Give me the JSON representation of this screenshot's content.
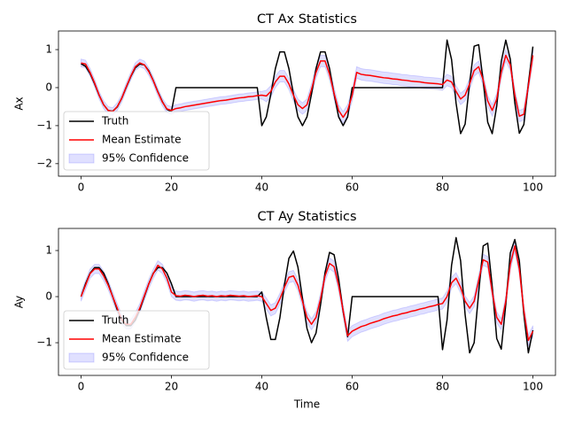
{
  "chart_data": [
    {
      "type": "line",
      "title": "CT Ax Statistics",
      "ylabel": "Ax",
      "x": [
        0,
        1,
        2,
        3,
        4,
        5,
        6,
        7,
        8,
        9,
        10,
        11,
        12,
        13,
        14,
        15,
        16,
        17,
        18,
        19,
        20,
        21,
        22,
        23,
        24,
        25,
        26,
        27,
        28,
        29,
        30,
        31,
        32,
        33,
        34,
        35,
        36,
        37,
        38,
        39,
        40,
        41,
        42,
        43,
        44,
        45,
        46,
        47,
        48,
        49,
        50,
        51,
        52,
        53,
        54,
        55,
        56,
        57,
        58,
        59,
        60,
        61,
        62,
        63,
        64,
        65,
        66,
        67,
        68,
        69,
        70,
        71,
        72,
        73,
        74,
        75,
        76,
        77,
        78,
        79,
        80,
        81,
        82,
        83,
        84,
        85,
        86,
        87,
        88,
        89,
        90,
        91,
        92,
        93,
        94,
        95,
        96,
        97,
        98,
        99,
        100
      ],
      "series": [
        {
          "name": "Truth",
          "color": "#000000",
          "values": [
            0.63,
            0.56,
            0.37,
            0.1,
            -0.2,
            -0.45,
            -0.6,
            -0.62,
            -0.51,
            -0.28,
            0.01,
            0.29,
            0.52,
            0.62,
            0.6,
            0.44,
            0.18,
            -0.11,
            -0.37,
            -0.57,
            -0.63,
            0,
            0,
            0,
            0,
            0,
            0,
            0,
            0,
            0,
            0,
            0,
            0,
            0,
            0,
            0,
            0,
            0,
            0,
            0,
            -1,
            -0.77,
            -0.17,
            0.5,
            0.94,
            0.94,
            0.5,
            -0.17,
            -0.77,
            -1,
            -0.77,
            -0.17,
            0.5,
            0.94,
            0.94,
            0.5,
            -0.17,
            -0.77,
            -1,
            -0.77,
            0,
            0,
            0,
            0,
            0,
            0,
            0,
            0,
            0,
            0,
            0,
            0,
            0,
            0,
            0,
            0,
            0,
            0,
            0,
            0,
            0,
            1.25,
            0.74,
            -0.41,
            -1.21,
            -0.96,
            0.12,
            1.09,
            1.13,
            0.17,
            -0.91,
            -1.21,
            -0.48,
            0.69,
            1.25,
            0.75,
            -0.4,
            -1.2,
            -0.97,
            0.1,
            1.08
          ]
        },
        {
          "name": "Mean Estimate",
          "color": "#ff0000",
          "values": [
            0.65,
            0.62,
            0.4,
            0.12,
            -0.2,
            -0.45,
            -0.6,
            -0.63,
            -0.5,
            -0.28,
            0.02,
            0.3,
            0.55,
            0.65,
            0.6,
            0.42,
            0.18,
            -0.12,
            -0.38,
            -0.56,
            -0.6,
            -0.55,
            -0.53,
            -0.5,
            -0.48,
            -0.46,
            -0.44,
            -0.42,
            -0.4,
            -0.38,
            -0.36,
            -0.34,
            -0.33,
            -0.31,
            -0.29,
            -0.27,
            -0.26,
            -0.24,
            -0.23,
            -0.21,
            -0.2,
            -0.22,
            -0.1,
            0.15,
            0.3,
            0.3,
            0.1,
            -0.2,
            -0.45,
            -0.55,
            -0.45,
            -0.05,
            0.4,
            0.7,
            0.7,
            0.35,
            -0.15,
            -0.6,
            -0.78,
            -0.6,
            -0.2,
            0.4,
            0.35,
            0.33,
            0.32,
            0.3,
            0.28,
            0.26,
            0.25,
            0.23,
            0.22,
            0.2,
            0.19,
            0.17,
            0.16,
            0.15,
            0.13,
            0.12,
            0.11,
            0.1,
            0.08,
            0.2,
            0.15,
            -0.1,
            -0.3,
            -0.2,
            0.1,
            0.45,
            0.55,
            0.2,
            -0.35,
            -0.6,
            -0.3,
            0.4,
            0.85,
            0.6,
            -0.2,
            -0.75,
            -0.7,
            0.05,
            0.85
          ]
        }
      ],
      "band": {
        "name": "95% Confidence",
        "color": "#0000ff",
        "lower": [
          0.55,
          0.52,
          0.3,
          0.02,
          -0.3,
          -0.55,
          -0.7,
          -0.73,
          -0.6,
          -0.38,
          -0.08,
          0.2,
          0.45,
          0.55,
          0.5,
          0.32,
          0.08,
          -0.22,
          -0.48,
          -0.66,
          -0.7,
          -0.65,
          -0.63,
          -0.6,
          -0.58,
          -0.56,
          -0.54,
          -0.52,
          -0.5,
          -0.48,
          -0.46,
          -0.44,
          -0.43,
          -0.41,
          -0.39,
          -0.37,
          -0.36,
          -0.34,
          -0.33,
          -0.31,
          -0.3,
          -0.37,
          -0.25,
          0.0,
          0.15,
          0.15,
          -0.05,
          -0.35,
          -0.6,
          -0.7,
          -0.6,
          -0.2,
          0.25,
          0.55,
          0.55,
          0.2,
          -0.3,
          -0.75,
          -0.93,
          -0.75,
          -0.35,
          0.25,
          0.2,
          0.18,
          0.17,
          0.15,
          0.13,
          0.11,
          0.1,
          0.08,
          0.07,
          0.05,
          0.04,
          0.02,
          0.01,
          0.0,
          -0.02,
          -0.03,
          -0.04,
          -0.05,
          -0.07,
          0.05,
          0.0,
          -0.25,
          -0.45,
          -0.35,
          -0.05,
          0.3,
          0.4,
          0.05,
          -0.5,
          -0.75,
          -0.45,
          0.25,
          0.7,
          0.45,
          -0.35,
          -0.9,
          -0.85,
          -0.1,
          0.7
        ],
        "upper": [
          0.75,
          0.72,
          0.5,
          0.22,
          -0.1,
          -0.35,
          -0.5,
          -0.53,
          -0.4,
          -0.18,
          0.12,
          0.4,
          0.65,
          0.75,
          0.7,
          0.52,
          0.28,
          -0.02,
          -0.28,
          -0.46,
          -0.5,
          -0.45,
          -0.43,
          -0.4,
          -0.38,
          -0.36,
          -0.34,
          -0.32,
          -0.3,
          -0.28,
          -0.26,
          -0.24,
          -0.23,
          -0.21,
          -0.19,
          -0.17,
          -0.16,
          -0.14,
          -0.13,
          -0.11,
          -0.1,
          -0.07,
          0.05,
          0.3,
          0.45,
          0.45,
          0.25,
          -0.05,
          -0.3,
          -0.4,
          -0.3,
          0.1,
          0.55,
          0.85,
          0.85,
          0.5,
          0.0,
          -0.45,
          -0.63,
          -0.45,
          -0.05,
          0.55,
          0.5,
          0.48,
          0.47,
          0.45,
          0.43,
          0.41,
          0.4,
          0.38,
          0.37,
          0.35,
          0.34,
          0.32,
          0.31,
          0.3,
          0.28,
          0.27,
          0.26,
          0.25,
          0.23,
          0.35,
          0.3,
          0.05,
          -0.15,
          -0.05,
          0.25,
          0.6,
          0.7,
          0.35,
          -0.2,
          -0.45,
          -0.15,
          0.55,
          1.0,
          0.75,
          -0.05,
          -0.6,
          -0.55,
          0.2,
          1.0
        ]
      },
      "xlim": [
        -5,
        105
      ],
      "ylim": [
        -2.33,
        1.49
      ],
      "xticks": [
        0,
        20,
        40,
        60,
        80,
        100
      ],
      "yticks": [
        {
          "value": -2,
          "label": "−2"
        },
        {
          "value": -1,
          "label": "−1"
        },
        0,
        1
      ],
      "legend": "lower left"
    },
    {
      "type": "line",
      "title": "CT Ay Statistics",
      "ylabel": "Ay",
      "xlabel": "Time",
      "x": [
        0,
        1,
        2,
        3,
        4,
        5,
        6,
        7,
        8,
        9,
        10,
        11,
        12,
        13,
        14,
        15,
        16,
        17,
        18,
        19,
        20,
        21,
        22,
        23,
        24,
        25,
        26,
        27,
        28,
        29,
        30,
        31,
        32,
        33,
        34,
        35,
        36,
        37,
        38,
        39,
        40,
        41,
        42,
        43,
        44,
        45,
        46,
        47,
        48,
        49,
        50,
        51,
        52,
        53,
        54,
        55,
        56,
        57,
        58,
        59,
        60,
        61,
        62,
        63,
        64,
        65,
        66,
        67,
        68,
        69,
        70,
        71,
        72,
        73,
        74,
        75,
        76,
        77,
        78,
        79,
        80,
        81,
        82,
        83,
        84,
        85,
        86,
        87,
        88,
        89,
        90,
        91,
        92,
        93,
        94,
        95,
        96,
        97,
        98,
        99,
        100
      ],
      "series": [
        {
          "name": "Truth",
          "color": "#000000",
          "values": [
            0,
            0.28,
            0.51,
            0.63,
            0.63,
            0.51,
            0.28,
            0,
            -0.28,
            -0.51,
            -0.63,
            -0.63,
            -0.51,
            -0.28,
            0,
            0.28,
            0.51,
            0.63,
            0.63,
            0.51,
            0.28,
            0,
            0,
            0,
            0,
            0,
            0,
            0,
            0,
            0,
            0,
            0,
            0,
            0,
            0,
            0,
            0,
            0,
            0,
            0,
            0.1,
            -0.46,
            -0.93,
            -0.93,
            -0.46,
            0.25,
            0.83,
            0.99,
            0.64,
            -0.04,
            -0.69,
            -1,
            -0.79,
            -0.18,
            0.52,
            0.96,
            0.91,
            0.39,
            -0.32,
            -0.87,
            0,
            0,
            0,
            0,
            0,
            0,
            0,
            0,
            0,
            0,
            0,
            0,
            0,
            0,
            0,
            0,
            0,
            0,
            0,
            0,
            -1.15,
            -0.51,
            0.68,
            1.28,
            0.78,
            -0.39,
            -1.22,
            -1,
            0.09,
            1.1,
            1.16,
            0.22,
            -0.91,
            -1.14,
            -0.17,
            0.95,
            1.24,
            0.78,
            -0.39,
            -1.22,
            -0.73
          ]
        },
        {
          "name": "Mean Estimate",
          "color": "#ff0000",
          "values": [
            0,
            0.25,
            0.5,
            0.6,
            0.6,
            0.45,
            0.25,
            0,
            -0.25,
            -0.5,
            -0.6,
            -0.6,
            -0.45,
            -0.25,
            0.02,
            0.28,
            0.5,
            0.68,
            0.6,
            0.4,
            0.1,
            0.02,
            0.01,
            0.03,
            0.02,
            0.0,
            0.02,
            0.03,
            0.01,
            0.02,
            0.0,
            0.02,
            0.01,
            0.03,
            0.02,
            0.01,
            0.02,
            0.0,
            0.01,
            0.02,
            0.0,
            -0.15,
            -0.3,
            -0.25,
            -0.05,
            0.2,
            0.42,
            0.45,
            0.25,
            -0.1,
            -0.45,
            -0.6,
            -0.45,
            -0.05,
            0.45,
            0.72,
            0.65,
            0.25,
            -0.3,
            -0.85,
            -0.75,
            -0.7,
            -0.65,
            -0.62,
            -0.58,
            -0.55,
            -0.52,
            -0.48,
            -0.45,
            -0.42,
            -0.4,
            -0.37,
            -0.35,
            -0.32,
            -0.3,
            -0.27,
            -0.25,
            -0.22,
            -0.2,
            -0.17,
            -0.15,
            0.0,
            0.3,
            0.4,
            0.2,
            -0.1,
            -0.25,
            -0.1,
            0.35,
            0.8,
            0.75,
            0.1,
            -0.45,
            -0.6,
            -0.1,
            0.7,
            1.1,
            0.6,
            -0.3,
            -0.95,
            -0.75
          ]
        }
      ],
      "band": {
        "name": "95% Confidence",
        "color": "#0000ff",
        "lower": [
          -0.1,
          0.15,
          0.4,
          0.5,
          0.5,
          0.35,
          0.15,
          -0.1,
          -0.35,
          -0.6,
          -0.7,
          -0.7,
          -0.55,
          -0.35,
          -0.08,
          0.18,
          0.4,
          0.58,
          0.5,
          0.3,
          0.0,
          -0.08,
          -0.09,
          -0.07,
          -0.08,
          -0.1,
          -0.08,
          -0.07,
          -0.09,
          -0.08,
          -0.1,
          -0.08,
          -0.09,
          -0.07,
          -0.08,
          -0.09,
          -0.08,
          -0.1,
          -0.09,
          -0.08,
          -0.1,
          -0.27,
          -0.42,
          -0.37,
          -0.17,
          0.08,
          0.3,
          0.33,
          0.13,
          -0.22,
          -0.57,
          -0.72,
          -0.57,
          -0.17,
          0.33,
          0.6,
          0.53,
          0.13,
          -0.42,
          -0.97,
          -0.87,
          -0.82,
          -0.77,
          -0.74,
          -0.7,
          -0.67,
          -0.64,
          -0.6,
          -0.57,
          -0.54,
          -0.52,
          -0.49,
          -0.47,
          -0.44,
          -0.42,
          -0.39,
          -0.37,
          -0.34,
          -0.32,
          -0.29,
          -0.27,
          -0.12,
          0.18,
          0.28,
          0.08,
          -0.22,
          -0.37,
          -0.22,
          0.23,
          0.68,
          0.63,
          -0.02,
          -0.57,
          -0.72,
          -0.22,
          0.58,
          0.98,
          0.48,
          -0.42,
          -1.07,
          -0.87
        ],
        "upper": [
          0.1,
          0.35,
          0.6,
          0.7,
          0.7,
          0.55,
          0.35,
          0.1,
          -0.15,
          -0.4,
          -0.5,
          -0.5,
          -0.35,
          -0.15,
          0.12,
          0.38,
          0.6,
          0.78,
          0.7,
          0.5,
          0.2,
          0.12,
          0.11,
          0.13,
          0.12,
          0.1,
          0.12,
          0.13,
          0.11,
          0.12,
          0.1,
          0.12,
          0.11,
          0.13,
          0.12,
          0.11,
          0.12,
          0.1,
          0.11,
          0.12,
          0.1,
          -0.03,
          -0.18,
          -0.13,
          0.07,
          0.32,
          0.54,
          0.57,
          0.37,
          0.02,
          -0.33,
          -0.48,
          -0.33,
          0.07,
          0.57,
          0.84,
          0.77,
          0.37,
          -0.18,
          -0.73,
          -0.63,
          -0.58,
          -0.53,
          -0.5,
          -0.46,
          -0.43,
          -0.4,
          -0.36,
          -0.33,
          -0.3,
          -0.28,
          -0.25,
          -0.23,
          -0.2,
          -0.18,
          -0.15,
          -0.13,
          -0.1,
          -0.08,
          -0.05,
          -0.03,
          0.12,
          0.42,
          0.52,
          0.32,
          0.02,
          -0.13,
          0.02,
          0.47,
          0.92,
          0.87,
          0.22,
          -0.33,
          -0.48,
          0.02,
          0.82,
          1.22,
          0.72,
          -0.18,
          -0.83,
          -0.63
        ]
      },
      "xlim": [
        -5,
        105
      ],
      "ylim": [
        -1.71,
        1.48
      ],
      "xticks": [
        0,
        20,
        40,
        60,
        80,
        100
      ],
      "yticks": [
        {
          "value": -1,
          "label": "−1"
        },
        0,
        1
      ],
      "legend": "lower left"
    }
  ]
}
